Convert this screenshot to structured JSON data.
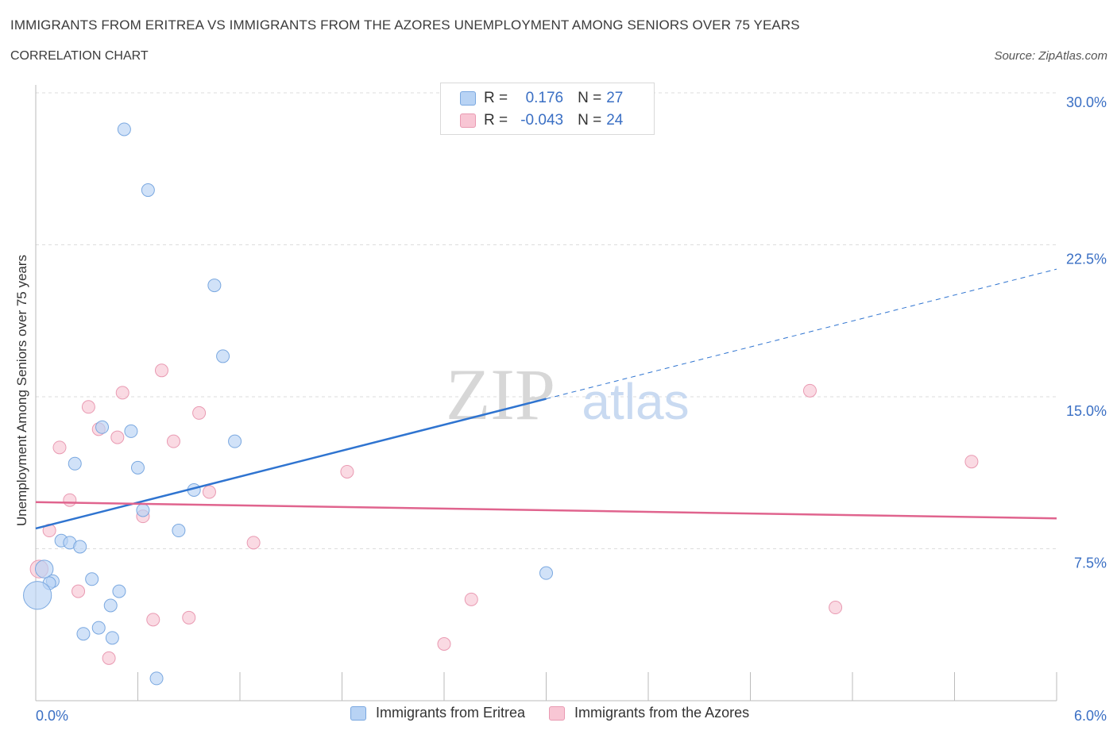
{
  "title": "IMMIGRANTS FROM ERITREA VS IMMIGRANTS FROM THE AZORES UNEMPLOYMENT AMONG SENIORS OVER 75 YEARS",
  "subtitle": "CORRELATION CHART",
  "source": "Source: ZipAtlas.com",
  "watermark": {
    "zip": "ZIP",
    "atlas": "atlas"
  },
  "legend": {
    "r_label": "R =",
    "n_label": "N =",
    "eritrea": {
      "r": "0.176",
      "n": "27"
    },
    "azores": {
      "r": "-0.043",
      "n": "24"
    }
  },
  "colors": {
    "eritrea_fill": "#b8d3f4",
    "eritrea_stroke": "#7aa8e0",
    "eritrea_line": "#2f74d0",
    "azores_fill": "#f8c6d4",
    "azores_stroke": "#e99ab2",
    "azores_line": "#e0648e",
    "axis_text": "#3a6fc4",
    "grid": "#dddddd"
  },
  "chart_data": {
    "type": "scatter",
    "title": "IMMIGRANTS FROM ERITREA VS IMMIGRANTS FROM THE AZORES UNEMPLOYMENT AMONG SENIORS OVER 75 YEARS",
    "xlabel": "",
    "ylabel": "Unemployment Among Seniors over 75 years",
    "xlim": [
      0,
      6
    ],
    "ylim": [
      0,
      30
    ],
    "x_tick_labels": [
      "0.0%",
      "6.0%"
    ],
    "y_tick_labels": [
      "7.5%",
      "15.0%",
      "22.5%",
      "30.0%"
    ],
    "y_ticks": [
      7.5,
      15.0,
      22.5,
      30.0
    ],
    "grid": true,
    "legend_position": "bottom",
    "series": [
      {
        "name": "Immigrants from Eritrea",
        "points": [
          [
            0.52,
            28.2
          ],
          [
            0.66,
            25.2
          ],
          [
            1.05,
            20.5
          ],
          [
            1.1,
            17.0
          ],
          [
            0.39,
            13.5
          ],
          [
            0.56,
            13.3
          ],
          [
            1.17,
            12.8
          ],
          [
            0.23,
            11.7
          ],
          [
            0.6,
            11.5
          ],
          [
            0.93,
            10.4
          ],
          [
            0.63,
            9.4
          ],
          [
            0.84,
            8.4
          ],
          [
            0.15,
            7.9
          ],
          [
            0.2,
            7.8
          ],
          [
            0.26,
            7.6
          ],
          [
            0.05,
            6.5
          ],
          [
            0.1,
            5.9
          ],
          [
            0.08,
            5.8
          ],
          [
            0.33,
            6.0
          ],
          [
            0.49,
            5.4
          ],
          [
            3.0,
            6.3
          ],
          [
            0.44,
            4.7
          ],
          [
            0.37,
            3.6
          ],
          [
            0.28,
            3.3
          ],
          [
            0.45,
            3.1
          ],
          [
            0.71,
            1.1
          ],
          [
            0.01,
            5.2
          ]
        ],
        "sizes": [
          1,
          1,
          1,
          1,
          1,
          1,
          1,
          1,
          1,
          1,
          1,
          1,
          1,
          1,
          1,
          1.4,
          1,
          1,
          1,
          1,
          1,
          1,
          1,
          1,
          1,
          1,
          2.2
        ],
        "trend": {
          "x": [
            0,
            3.0
          ],
          "y": [
            8.5,
            14.9
          ],
          "dashed_extension": {
            "x": [
              3.0,
              6.0
            ],
            "y": [
              14.9,
              21.3
            ]
          }
        }
      },
      {
        "name": "Immigrants from the Azores",
        "points": [
          [
            0.74,
            16.3
          ],
          [
            0.51,
            15.2
          ],
          [
            0.31,
            14.5
          ],
          [
            0.96,
            14.2
          ],
          [
            0.37,
            13.4
          ],
          [
            0.48,
            13.0
          ],
          [
            0.81,
            12.8
          ],
          [
            0.14,
            12.5
          ],
          [
            1.83,
            11.3
          ],
          [
            0.2,
            9.9
          ],
          [
            1.02,
            10.3
          ],
          [
            0.63,
            9.1
          ],
          [
            0.08,
            8.4
          ],
          [
            1.28,
            7.8
          ],
          [
            0.02,
            6.5
          ],
          [
            0.25,
            5.4
          ],
          [
            2.56,
            5.0
          ],
          [
            0.9,
            4.1
          ],
          [
            0.69,
            4.0
          ],
          [
            2.4,
            2.8
          ],
          [
            0.43,
            2.1
          ],
          [
            4.55,
            15.3
          ],
          [
            5.5,
            11.8
          ],
          [
            4.7,
            4.6
          ]
        ],
        "sizes": [
          1,
          1,
          1,
          1,
          1,
          1,
          1,
          1,
          1,
          1,
          1,
          1,
          1,
          1,
          1.4,
          1,
          1,
          1,
          1,
          1,
          1,
          1,
          1,
          1
        ],
        "trend": {
          "x": [
            0,
            6.0
          ],
          "y": [
            9.8,
            9.0
          ]
        }
      }
    ]
  }
}
